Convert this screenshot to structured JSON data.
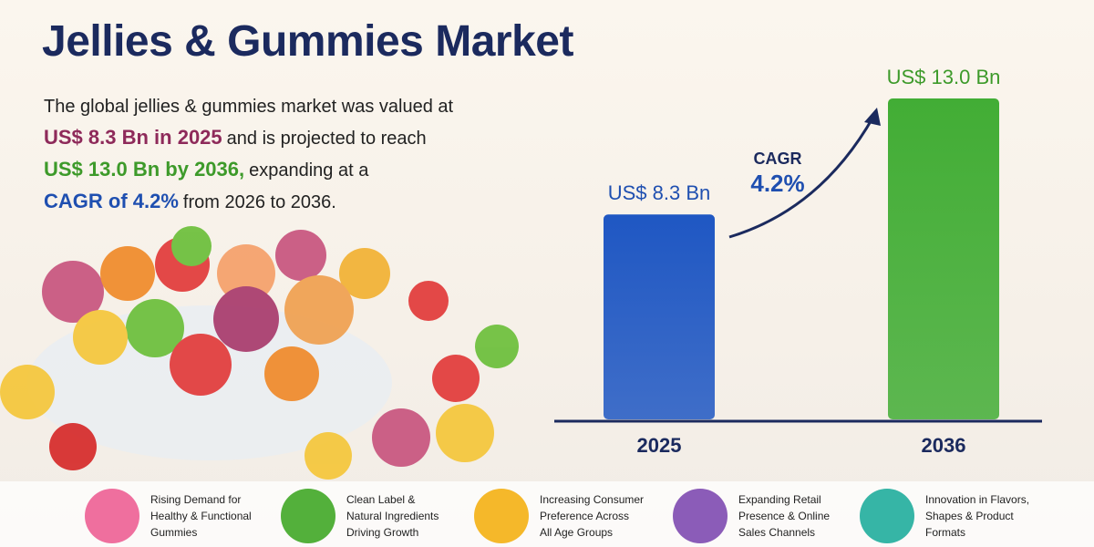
{
  "title": "Jellies & Gummies Market",
  "description": [
    "The global jellies & gummies market was valued at",
    "US$ 8.3 Bn in 2025",
    "and is projected to reach",
    "US$ 13.0 Bn by 2036,",
    "expanding at a",
    "CAGR of 4.2%",
    "from 2026 to 2036."
  ],
  "chart_data": {
    "type": "bar",
    "categories": [
      "2025",
      "2036"
    ],
    "values": [
      8.3,
      13.0
    ],
    "value_labels": [
      "US$ 8.3 Bn",
      "US$ 13.0 Bn"
    ],
    "colors": [
      "#1f57c3",
      "#42ad35"
    ],
    "annotations": [
      "CAGR",
      "4.2%"
    ]
  },
  "drivers": [
    "Rising Demand for\nHealthy & Functional\nGummies",
    "Clean Label &\nNatural Ingredients\nDriving Growth",
    "Increasing Consumer\nPreference Across\nAll Age Groups",
    "Expanding Retail\nPresence & Online\nSales Channels",
    "Innovation in Flavors,\nShapes & Product\nFormats"
  ]
}
